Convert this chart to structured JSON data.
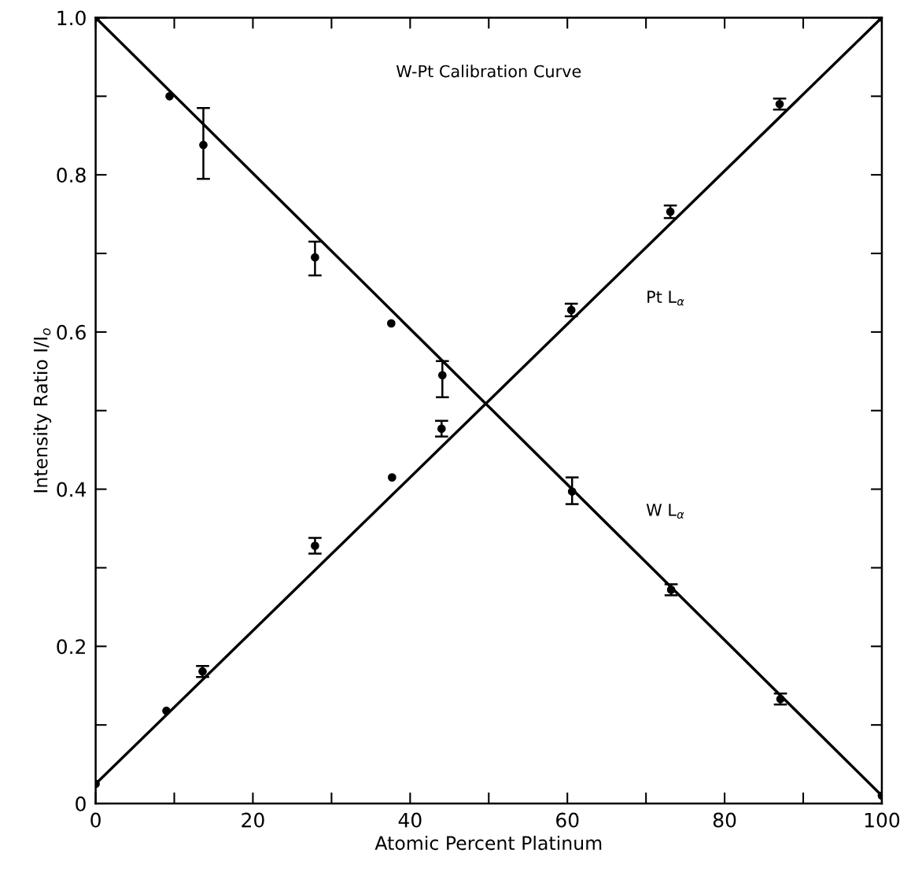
{
  "chart_data": {
    "type": "scatter",
    "title": "W-Pt Calibration Curve",
    "xlabel": "Atomic Percent Platinum",
    "ylabel": "Intensity Ratio I/I$_{o}$",
    "xlim": [
      0,
      100
    ],
    "ylim": [
      0,
      1.0
    ],
    "xticks": [
      0,
      {
        "value": 10,
        "label": null
      },
      20,
      {
        "value": 30,
        "label": null
      },
      40,
      {
        "value": 50,
        "label": null
      },
      60,
      {
        "value": 70,
        "label": null
      },
      80,
      {
        "value": 90,
        "label": null
      },
      100
    ],
    "yticks": [
      0,
      {
        "value": 0.1,
        "label": null
      },
      0.2,
      {
        "value": 0.3,
        "label": null
      },
      0.4,
      {
        "value": 0.5,
        "label": null
      },
      0.6,
      {
        "value": 0.7,
        "label": null
      },
      0.8,
      {
        "value": 0.9,
        "label": null
      },
      {
        "value": 1.0,
        "label": "1.0"
      }
    ],
    "grid": false,
    "legend": false,
    "marker": "circle",
    "series": [
      {
        "color": "#000000",
        "x": [
          0,
          9.4,
          13.7,
          27.9,
          37.6,
          44.1,
          60.6,
          73.2,
          87.1,
          100
        ],
        "values": [
          1.0,
          0.9,
          0.838,
          0.695,
          0.611,
          0.545,
          0.397,
          0.272,
          0.133,
          0.01
        ],
        "errors": [
          null,
          null,
          [
            0.795,
            0.885
          ],
          [
            0.672,
            0.715
          ],
          null,
          [
            0.517,
            0.563
          ],
          [
            0.381,
            0.415
          ],
          0.007,
          0.007,
          null
        ]
      },
      {
        "color": "#000000",
        "x": [
          0,
          9.0,
          13.6,
          27.9,
          37.7,
          44.0,
          60.5,
          73.1,
          87.0,
          100
        ],
        "values": [
          0.025,
          0.118,
          0.168,
          0.328,
          0.415,
          0.477,
          0.628,
          0.753,
          0.89,
          1.0
        ],
        "errors": [
          null,
          null,
          0.007,
          0.01,
          null,
          0.01,
          0.008,
          0.008,
          0.007,
          null
        ]
      },
      {
        "type": "line",
        "name": "W L$_{α}$",
        "color": "#000000",
        "marker": "none",
        "line_style": "solid",
        "x": [
          0,
          100
        ],
        "values": [
          1.0,
          0.01
        ]
      },
      {
        "type": "line",
        "name": "Pt L$_{α}$",
        "color": "#000000",
        "marker": "none",
        "line_style": "solid",
        "x": [
          0,
          100
        ],
        "values": [
          0.025,
          1.0
        ]
      }
    ]
  }
}
